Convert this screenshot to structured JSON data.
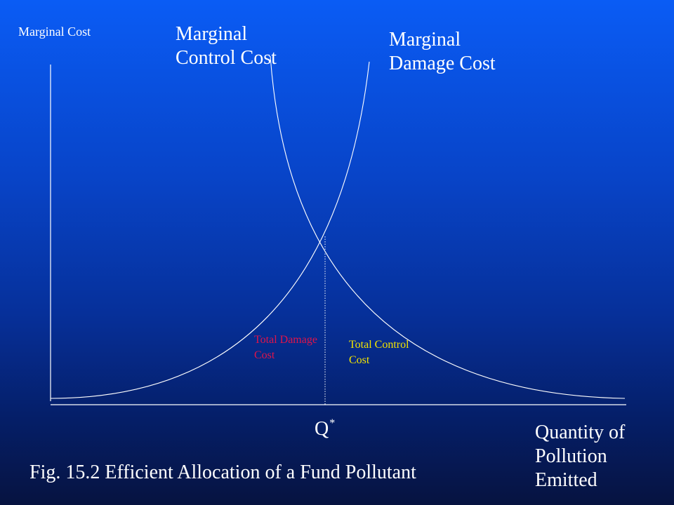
{
  "labels": {
    "y_axis": "Marginal Cost",
    "marginal_control_cost": "Marginal Control Cost",
    "marginal_damage_cost": "Marginal Damage Cost",
    "total_damage_cost": "Total Damage Cost",
    "total_control_cost": "Total Control Cost",
    "q_star_base": "Q",
    "q_star_sup": "*",
    "x_axis": "Quantity of Pollution Emitted"
  },
  "caption": "Fig. 15.2 Efficient Allocation of a Fund Pollutant",
  "colors": {
    "total_damage_cost": "#e0144a",
    "total_control_cost": "#f2e400",
    "lines": "#ffffff"
  }
}
